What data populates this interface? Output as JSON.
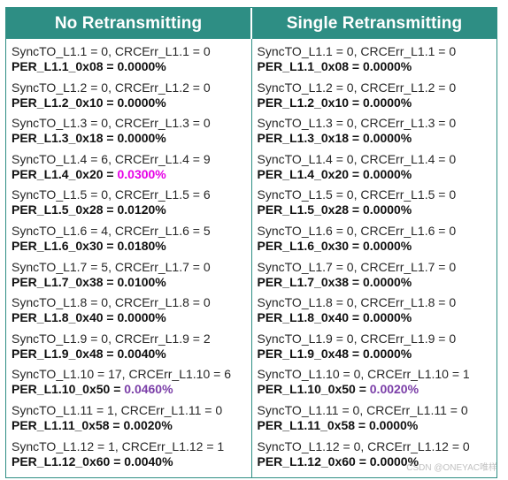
{
  "header": {
    "left": "No Retransmitting",
    "right": "Single Retransmitting"
  },
  "colors": {
    "header_bg": "#2e8e84",
    "highlight_magenta": "#e600e6",
    "highlight_purple": "#7b3fa8"
  },
  "no_retransmitting": [
    {
      "sync": "SyncTO_L1.1 = 0, CRCErr_L1.1 = 0",
      "per": "PER_L1.1_0x08 = ",
      "value": "0.0000%",
      "color": ""
    },
    {
      "sync": "SyncTO_L1.2 = 0, CRCErr_L1.2 = 0",
      "per": "PER_L1.2_0x10 = ",
      "value": "0.0000%",
      "color": ""
    },
    {
      "sync": "SyncTO_L1.3 = 0, CRCErr_L1.3 = 0",
      "per": "PER_L1.3_0x18 = ",
      "value": "0.0000%",
      "color": ""
    },
    {
      "sync": "SyncTO_L1.4 = 6, CRCErr_L1.4 = 9",
      "per": "PER_L1.4_0x20 = ",
      "value": "0.0300%",
      "color": "#e600e6"
    },
    {
      "sync": "SyncTO_L1.5 = 0, CRCErr_L1.5 = 6",
      "per": "PER_L1.5_0x28 = ",
      "value": "0.0120%",
      "color": ""
    },
    {
      "sync": "SyncTO_L1.6 = 4, CRCErr_L1.6 = 5",
      "per": "PER_L1.6_0x30 = ",
      "value": "0.0180%",
      "color": ""
    },
    {
      "sync": "SyncTO_L1.7 = 5, CRCErr_L1.7 = 0",
      "per": "PER_L1.7_0x38 = ",
      "value": "0.0100%",
      "color": ""
    },
    {
      "sync": "SyncTO_L1.8 = 0, CRCErr_L1.8 = 0",
      "per": "PER_L1.8_0x40 = ",
      "value": "0.0000%",
      "color": ""
    },
    {
      "sync": "SyncTO_L1.9 = 0, CRCErr_L1.9 = 2",
      "per": "PER_L1.9_0x48 = ",
      "value": "0.0040%",
      "color": ""
    },
    {
      "sync": "SyncTO_L1.10 = 17, CRCErr_L1.10 = 6",
      "per": "PER_L1.10_0x50 = ",
      "value": "0.0460%",
      "color": "#7b3fa8"
    },
    {
      "sync": "SyncTO_L1.11 = 1, CRCErr_L1.11 = 0",
      "per": "PER_L1.11_0x58 = ",
      "value": "0.0020%",
      "color": ""
    },
    {
      "sync": "SyncTO_L1.12 = 1, CRCErr_L1.12 = 1",
      "per": "PER_L1.12_0x60 = ",
      "value": "0.0040%",
      "color": ""
    }
  ],
  "single_retransmitting": [
    {
      "sync": "SyncTO_L1.1 = 0, CRCErr_L1.1 = 0",
      "per": "PER_L1.1_0x08 = ",
      "value": "0.0000%",
      "color": ""
    },
    {
      "sync": "SyncTO_L1.2 = 0, CRCErr_L1.2 = 0",
      "per": "PER_L1.2_0x10 = ",
      "value": "0.0000%",
      "color": ""
    },
    {
      "sync": "SyncTO_L1.3 = 0, CRCErr_L1.3 = 0",
      "per": "PER_L1.3_0x18 = ",
      "value": "0.0000%",
      "color": ""
    },
    {
      "sync": "SyncTO_L1.4 = 0, CRCErr_L1.4 = 0",
      "per": "PER_L1.4_0x20 = ",
      "value": "0.0000%",
      "color": ""
    },
    {
      "sync": "SyncTO_L1.5 = 0, CRCErr_L1.5 = 0",
      "per": "PER_L1.5_0x28 = ",
      "value": "0.0000%",
      "color": ""
    },
    {
      "sync": "SyncTO_L1.6 = 0, CRCErr_L1.6 = 0",
      "per": "PER_L1.6_0x30 = ",
      "value": "0.0000%",
      "color": ""
    },
    {
      "sync": "SyncTO_L1.7 = 0, CRCErr_L1.7 = 0",
      "per": "PER_L1.7_0x38 = ",
      "value": "0.0000%",
      "color": ""
    },
    {
      "sync": "SyncTO_L1.8 = 0, CRCErr_L1.8 = 0",
      "per": "PER_L1.8_0x40 = ",
      "value": "0.0000%",
      "color": ""
    },
    {
      "sync": "SyncTO_L1.9 = 0, CRCErr_L1.9 = 0",
      "per": "PER_L1.9_0x48 = ",
      "value": "0.0000%",
      "color": ""
    },
    {
      "sync": "SyncTO_L1.10 = 0, CRCErr_L1.10 = 1",
      "per": "PER_L1.10_0x50 = ",
      "value": "0.0020%",
      "color": "#7b3fa8"
    },
    {
      "sync": "SyncTO_L1.11 = 0, CRCErr_L1.11 = 0",
      "per": "PER_L1.11_0x58 = ",
      "value": "0.0000%",
      "color": ""
    },
    {
      "sync": "SyncTO_L1.12 = 0, CRCErr_L1.12 = 0",
      "per": "PER_L1.12_0x60 = ",
      "value": "0.0000%",
      "color": ""
    }
  ],
  "watermark": "CSDN @ONEYAC唯样"
}
